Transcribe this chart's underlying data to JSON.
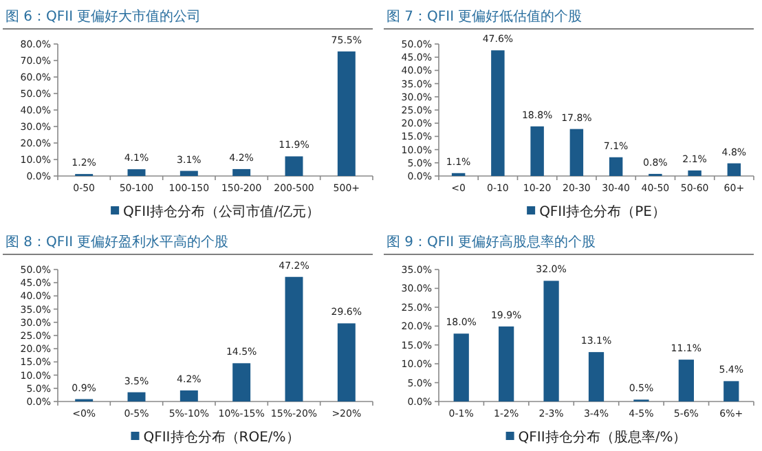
{
  "chart_data": [
    {
      "type": "bar",
      "title": "图 6：QFII 更偏好大市值的公司",
      "categories": [
        "0-50",
        "50-100",
        "100-150",
        "150-200",
        "200-500",
        "500+"
      ],
      "series": [
        {
          "name": "QFII持仓分布（公司市值/亿元）",
          "color": "#1b5a8a",
          "values": [
            1.2,
            4.1,
            3.1,
            4.2,
            11.9,
            75.5
          ],
          "value_labels": [
            "1.2%",
            "4.1%",
            "3.1%",
            "4.2%",
            "11.9%",
            "75.5%"
          ]
        }
      ],
      "ylim": [
        0,
        80
      ],
      "yticks": [
        {
          "value": 0,
          "label": "0.0%"
        },
        {
          "value": 10,
          "label": "10.0%"
        },
        {
          "value": 20,
          "label": "20.0%"
        },
        {
          "value": 30,
          "label": "30.0%"
        },
        {
          "value": 40,
          "label": "40.0%"
        },
        {
          "value": 50,
          "label": "50.0%"
        },
        {
          "value": 60,
          "label": "60.0%"
        },
        {
          "value": 70,
          "label": "70.0%"
        },
        {
          "value": 80,
          "label": "80.0%"
        }
      ],
      "legend": "bottom"
    },
    {
      "type": "bar",
      "title": "图 7：QFII 更偏好低估值的个股",
      "categories": [
        "<0",
        "0-10",
        "10-20",
        "20-30",
        "30-40",
        "40-50",
        "50-60",
        "60+"
      ],
      "series": [
        {
          "name": "QFII持仓分布（PE）",
          "color": "#1b5a8a",
          "values": [
            1.1,
            47.6,
            18.8,
            17.8,
            7.1,
            0.8,
            2.1,
            4.8
          ],
          "value_labels": [
            "1.1%",
            "47.6%",
            "18.8%",
            "17.8%",
            "7.1%",
            "0.8%",
            "2.1%",
            "4.8%"
          ]
        }
      ],
      "ylim": [
        0,
        50
      ],
      "yticks": [
        {
          "value": 0,
          "label": "0.0%"
        },
        {
          "value": 5,
          "label": "5.0%"
        },
        {
          "value": 10,
          "label": "10.0%"
        },
        {
          "value": 15,
          "label": "15.0%"
        },
        {
          "value": 20,
          "label": "20.0%"
        },
        {
          "value": 25,
          "label": "25.0%"
        },
        {
          "value": 30,
          "label": "30.0%"
        },
        {
          "value": 35,
          "label": "35.0%"
        },
        {
          "value": 40,
          "label": "40.0%"
        },
        {
          "value": 45,
          "label": "45.0%"
        },
        {
          "value": 50,
          "label": "50.0%"
        }
      ],
      "legend": "bottom"
    },
    {
      "type": "bar",
      "title": "图 8：QFII 更偏好盈利水平高的个股",
      "categories": [
        "<0%",
        "0-5%",
        "5%-10%",
        "10%-15%",
        "15%-20%",
        ">20%"
      ],
      "series": [
        {
          "name": "QFII持仓分布（ROE/%）",
          "color": "#1b5a8a",
          "values": [
            0.9,
            3.5,
            4.2,
            14.5,
            47.2,
            29.6
          ],
          "value_labels": [
            "0.9%",
            "3.5%",
            "4.2%",
            "14.5%",
            "47.2%",
            "29.6%"
          ]
        }
      ],
      "ylim": [
        0,
        50
      ],
      "yticks": [
        {
          "value": 0,
          "label": "0.0%"
        },
        {
          "value": 5,
          "label": "5.0%"
        },
        {
          "value": 10,
          "label": "10.0%"
        },
        {
          "value": 15,
          "label": "15.0%"
        },
        {
          "value": 20,
          "label": "20.0%"
        },
        {
          "value": 25,
          "label": "25.0%"
        },
        {
          "value": 30,
          "label": "30.0%"
        },
        {
          "value": 35,
          "label": "35.0%"
        },
        {
          "value": 40,
          "label": "40.0%"
        },
        {
          "value": 45,
          "label": "45.0%"
        },
        {
          "value": 50,
          "label": "50.0%"
        }
      ],
      "legend": "bottom"
    },
    {
      "type": "bar",
      "title": "图 9：QFII 更偏好高股息率的个股",
      "categories": [
        "0-1%",
        "1-2%",
        "2-3%",
        "3-4%",
        "4-5%",
        "5-6%",
        "6%+"
      ],
      "series": [
        {
          "name": "QFII持仓分布（股息率/%）",
          "color": "#1b5a8a",
          "values": [
            18.0,
            19.9,
            32.0,
            13.1,
            0.5,
            11.1,
            5.4
          ],
          "value_labels": [
            "18.0%",
            "19.9%",
            "32.0%",
            "13.1%",
            "0.5%",
            "11.1%",
            "5.4%"
          ]
        }
      ],
      "ylim": [
        0,
        35
      ],
      "yticks": [
        {
          "value": 0,
          "label": "0.0%"
        },
        {
          "value": 5,
          "label": "5.0%"
        },
        {
          "value": 10,
          "label": "10.0%"
        },
        {
          "value": 15,
          "label": "15.0%"
        },
        {
          "value": 20,
          "label": "20.0%"
        },
        {
          "value": 25,
          "label": "25.0%"
        },
        {
          "value": 30,
          "label": "30.0%"
        },
        {
          "value": 35,
          "label": "35.0%"
        }
      ],
      "legend": "bottom"
    }
  ]
}
